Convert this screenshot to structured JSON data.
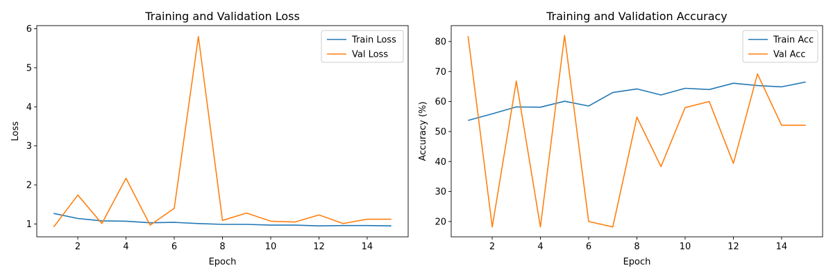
{
  "chart_data": [
    {
      "type": "line",
      "title": "Training and Validation Loss",
      "xlabel": "Epoch",
      "ylabel": "Loss",
      "xlim": [
        0.3,
        15.7
      ],
      "ylim": [
        0.67,
        6.08
      ],
      "xticks": [
        2,
        4,
        6,
        8,
        10,
        12,
        14
      ],
      "yticks": [
        1,
        2,
        3,
        4,
        5,
        6
      ],
      "legend_position": "top-right",
      "x": [
        1,
        2,
        3,
        4,
        5,
        6,
        7,
        8,
        9,
        10,
        11,
        12,
        13,
        14,
        15
      ],
      "series": [
        {
          "name": "Train Loss",
          "color": "#1f77b4",
          "values": [
            1.27,
            1.14,
            1.08,
            1.07,
            1.03,
            1.04,
            1.01,
            0.99,
            0.99,
            0.97,
            0.97,
            0.95,
            0.96,
            0.96,
            0.95
          ]
        },
        {
          "name": "Val Loss",
          "color": "#ff7f0e",
          "values": [
            0.92,
            1.74,
            1.01,
            2.17,
            0.97,
            1.4,
            5.8,
            1.09,
            1.28,
            1.07,
            1.05,
            1.23,
            1.01,
            1.12,
            1.12
          ]
        }
      ]
    },
    {
      "type": "line",
      "title": "Training and Validation Accuracy",
      "xlabel": "Epoch",
      "ylabel": "Accuracy (%)",
      "xlim": [
        0.3,
        15.7
      ],
      "ylim": [
        14.9,
        85.3
      ],
      "xticks": [
        2,
        4,
        6,
        8,
        10,
        12,
        14
      ],
      "yticks": [
        20,
        30,
        40,
        50,
        60,
        70,
        80
      ],
      "legend_position": "top-right",
      "x": [
        1,
        2,
        3,
        4,
        5,
        6,
        7,
        8,
        9,
        10,
        11,
        12,
        13,
        14,
        15
      ],
      "series": [
        {
          "name": "Train Acc",
          "color": "#1f77b4",
          "values": [
            53.7,
            55.9,
            58.2,
            58.1,
            60.1,
            58.5,
            63.0,
            64.2,
            62.2,
            64.4,
            64.0,
            66.1,
            65.3,
            64.9,
            66.5
          ]
        },
        {
          "name": "Val Acc",
          "color": "#ff7f0e",
          "values": [
            81.8,
            18.2,
            66.8,
            18.2,
            82.0,
            20.0,
            18.2,
            54.8,
            38.3,
            58.0,
            60.0,
            39.4,
            69.2,
            52.1,
            52.1
          ]
        }
      ]
    }
  ]
}
